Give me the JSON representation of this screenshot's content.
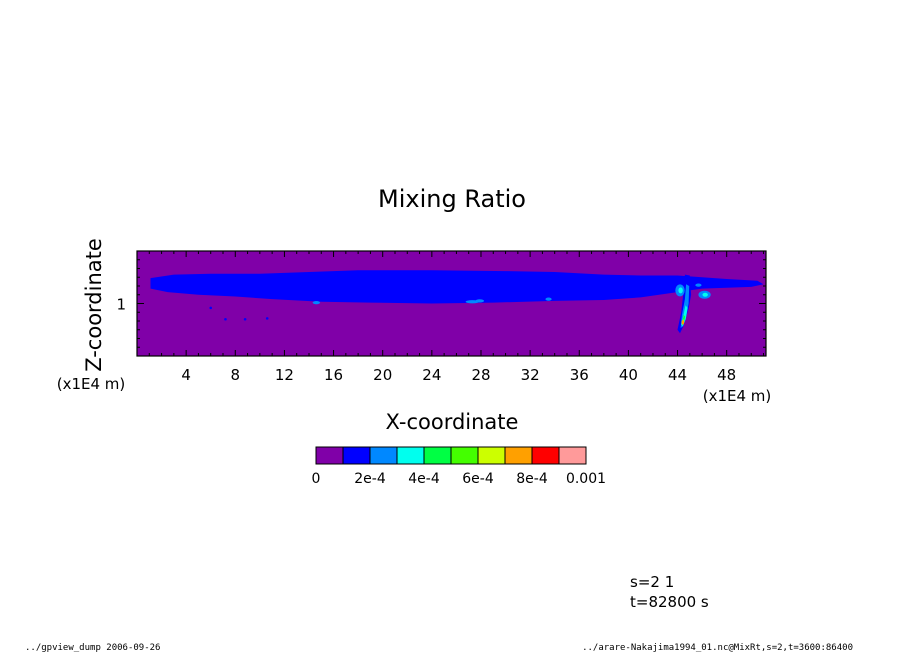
{
  "chart_data": {
    "type": "heatmap",
    "title": "Mixing Ratio",
    "xlabel": "X-coordinate",
    "ylabel": "Z-coordinate",
    "x_unit_label": "(x1E4 m)",
    "y_unit_label": "(x1E4 m)",
    "x_ticks": [
      "4",
      "8",
      "12",
      "16",
      "20",
      "24",
      "28",
      "32",
      "36",
      "40",
      "44",
      "48"
    ],
    "x_tick_values": [
      4,
      8,
      12,
      16,
      20,
      24,
      28,
      32,
      36,
      40,
      44,
      48
    ],
    "xlim": [
      0,
      51.2
    ],
    "y_ticks": [
      "1"
    ],
    "y_tick_values": [
      1
    ],
    "ylim": [
      0.4,
      1.6
    ],
    "levels": [
      0,
      0.0001,
      0.0002,
      0.0003,
      0.0004,
      0.0005,
      0.0006,
      0.0007,
      0.0008,
      0.0009,
      0.001
    ],
    "colorbar_labels": [
      "0",
      "2e-4",
      "4e-4",
      "6e-4",
      "8e-4",
      "0.001"
    ],
    "colors": [
      "#8000a8",
      "#0000ff",
      "#0088ff",
      "#00ffee",
      "#00ff44",
      "#44ff00",
      "#ccff00",
      "#ffa000",
      "#ff0000",
      "#ff9a9a"
    ],
    "background_color": "#8000a8",
    "features": [
      {
        "name": "cloud-layer",
        "x_range": [
          1.0,
          51.0
        ],
        "z_range": [
          0.93,
          1.35
        ],
        "level_band": 1
      },
      {
        "name": "updraft-plume",
        "x_range": [
          44.0,
          45.2
        ],
        "z_range": [
          0.65,
          1.3
        ],
        "level_band_max": 8
      }
    ]
  },
  "footer": {
    "step_line": "s=2 1",
    "time_line": "t=82800 s",
    "left_note": "../gpview_dump  2006-09-26",
    "right_note": "../arare-Nakajima1994_01.nc@MixRt,s=2,t=3600:86400"
  }
}
